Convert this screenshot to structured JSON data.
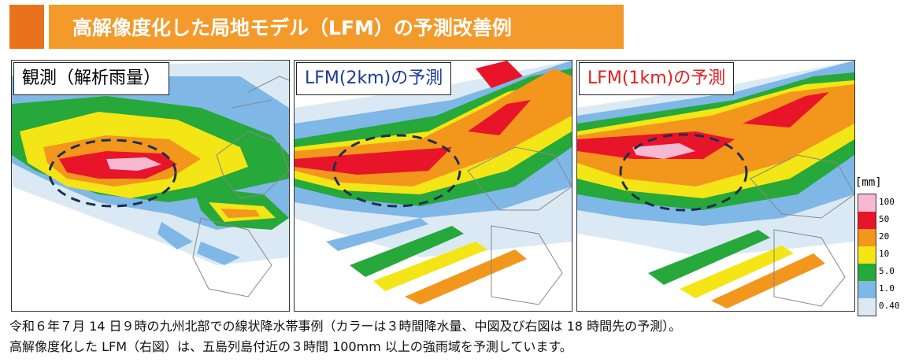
{
  "title": "高解像度化した局地モデル（LFM）の予測改善例",
  "panels": [
    {
      "label": "観測（解析雨量）",
      "label_color": "#111111"
    },
    {
      "label": "LFM(2km)の予測",
      "label_color": "#1a3a9a"
    },
    {
      "label": "LFM(1km)の予測",
      "label_color": "#e02020"
    }
  ],
  "legend": {
    "unit": "[mm]",
    "items": [
      {
        "label": "100",
        "color": "#f7b8d2"
      },
      {
        "label": "50",
        "color": "#e8152a"
      },
      {
        "label": "20",
        "color": "#f3961c"
      },
      {
        "label": "10",
        "color": "#f4e516"
      },
      {
        "label": "5.0",
        "color": "#26a83a"
      },
      {
        "label": "1.0",
        "color": "#7fb7e6"
      },
      {
        "label": "0.40",
        "color": "#dbe9f5"
      }
    ]
  },
  "caption": {
    "line1": "令和６年７月 14 日９時の九州北部での線状降水帯事例（カラーは３時間降水量、中図及び右図は 18 時間先の予測）。",
    "line2": "高解像度化した LFM（右図）は、五島列島付近の３時間 100mm 以上の強雨域を予測しています。"
  }
}
